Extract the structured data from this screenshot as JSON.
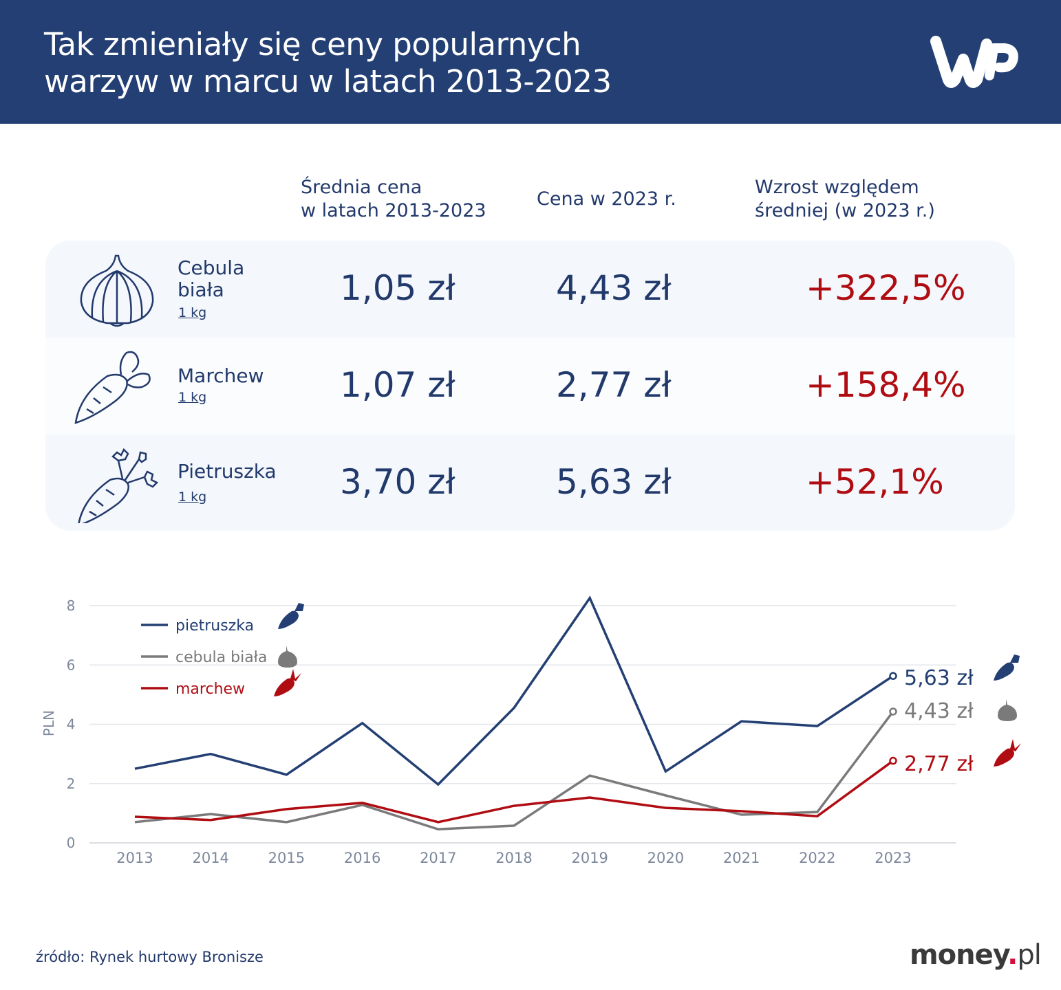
{
  "header": {
    "title_line1": "Tak zmieniały się ceny popularnych",
    "title_line2": "warzyw w marcu w latach 2013-2023",
    "logo": "WP"
  },
  "table": {
    "columns": [
      {
        "line1": "Średnia cena",
        "line2": "w latach 2013-2023"
      },
      {
        "line1": "Cena w 2023 r.",
        "line2": ""
      },
      {
        "line1": "Wzrost względem",
        "line2": "średniej (w 2023 r.)"
      }
    ],
    "rows": [
      {
        "name_line1": "Cebula",
        "name_line2": "biała",
        "unit": "1 kg",
        "icon": "onion-icon",
        "avg": "1,05 zł",
        "price2023": "4,43 zł",
        "growth": "+322,5%"
      },
      {
        "name_line1": "Marchew",
        "name_line2": "",
        "unit": "1 kg",
        "icon": "carrot-icon",
        "avg": "1,07 zł",
        "price2023": "2,77 zł",
        "growth": "+158,4%"
      },
      {
        "name_line1": "Pietruszka",
        "name_line2": "",
        "unit": "1 kg",
        "icon": "parsley-root-icon",
        "avg": "3,70 zł",
        "price2023": "5,63 zł",
        "growth": "+52,1%"
      }
    ]
  },
  "chart_data": {
    "type": "line",
    "title": "",
    "xlabel": "",
    "ylabel": "PLN",
    "ylim": [
      0,
      8
    ],
    "yticks": [
      "0",
      "2",
      "4",
      "6",
      "8"
    ],
    "categories": [
      "2013",
      "2014",
      "2015",
      "2016",
      "2017",
      "2018",
      "2019",
      "2020",
      "2021",
      "2022",
      "2023"
    ],
    "grid": true,
    "legend": "top-left",
    "series": [
      {
        "name": "pietruszka",
        "color": "#233f73",
        "values": [
          2.5,
          3.0,
          2.3,
          4.04,
          1.97,
          4.55,
          8.26,
          2.41,
          4.1,
          3.94,
          5.63
        ],
        "end_label": "5,63 zł"
      },
      {
        "name": "cebula biała",
        "color": "#7a7a7a",
        "values": [
          0.7,
          0.97,
          0.7,
          1.28,
          0.46,
          0.58,
          2.27,
          1.6,
          0.95,
          1.04,
          4.43
        ],
        "end_label": "4,43 zł"
      },
      {
        "name": "marchew",
        "color": "#b00d13",
        "values": [
          0.88,
          0.77,
          1.14,
          1.35,
          0.7,
          1.25,
          1.53,
          1.18,
          1.07,
          0.9,
          2.77
        ],
        "end_label": "2,77 zł"
      }
    ]
  },
  "footer": {
    "source": "źródło: Rynek hurtowy Bronisze",
    "brand_main": "money",
    "brand_dot": ".",
    "brand_tld": "pl"
  }
}
